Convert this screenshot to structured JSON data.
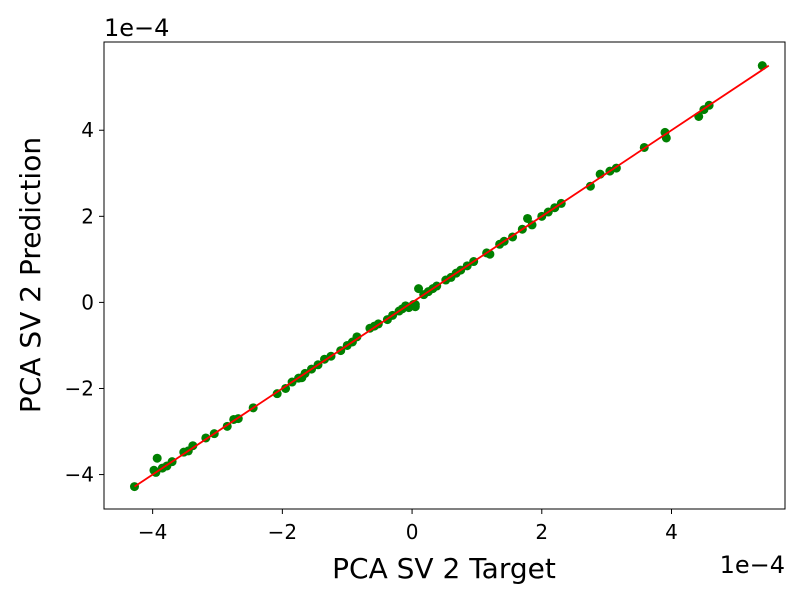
{
  "chart_data": {
    "type": "scatter",
    "title": "",
    "xlabel": "PCA SV 2 Target",
    "ylabel": "PCA SV 2 Prediction",
    "x_offset_text": "1e−4",
    "y_offset_text": "1e−4",
    "xlim": [
      -4.75,
      5.75
    ],
    "ylim": [
      -4.8,
      6.05
    ],
    "xticks": [
      -4,
      -2,
      0,
      2,
      4
    ],
    "yticks": [
      -4,
      -2,
      0,
      2,
      4
    ],
    "xtick_labels": [
      "−4",
      "−2",
      "0",
      "2",
      "4"
    ],
    "ytick_labels": [
      "−4",
      "−2",
      "0",
      "2",
      "4"
    ],
    "grid": false,
    "scale_note": "values in units of 1e-4",
    "points": {
      "color": "#008000",
      "x": [
        -4.28,
        -3.98,
        -3.93,
        -3.85,
        -3.78,
        -3.95,
        -3.7,
        -3.52,
        -3.45,
        -3.38,
        -3.18,
        -3.05,
        -2.85,
        -2.75,
        -2.68,
        -2.45,
        -2.08,
        -1.95,
        -1.85,
        -1.75,
        -1.65,
        -1.55,
        -1.45,
        -1.35,
        -1.25,
        -1.1,
        -1.0,
        -0.92,
        -0.85,
        -0.65,
        -0.58,
        -0.52,
        -0.38,
        -0.3,
        -0.2,
        -0.15,
        -0.1,
        0.05,
        0.1,
        0.18,
        0.25,
        0.32,
        0.38,
        0.52,
        0.6,
        0.68,
        0.75,
        0.85,
        0.95,
        1.15,
        1.2,
        1.35,
        1.42,
        1.55,
        1.7,
        1.78,
        1.85,
        2.0,
        2.1,
        2.2,
        2.3,
        2.75,
        2.9,
        3.05,
        3.15,
        3.58,
        3.9,
        3.92,
        4.42,
        4.5,
        4.58,
        5.4,
        -0.05,
        0.02,
        0.05,
        -1.7
      ],
      "y": [
        -4.28,
        -3.9,
        -3.62,
        -3.85,
        -3.8,
        -3.95,
        -3.7,
        -3.48,
        -3.45,
        -3.33,
        -3.15,
        -3.05,
        -2.88,
        -2.72,
        -2.7,
        -2.45,
        -2.12,
        -2.0,
        -1.85,
        -1.76,
        -1.65,
        -1.55,
        -1.45,
        -1.32,
        -1.25,
        -1.12,
        -1.0,
        -0.92,
        -0.8,
        -0.6,
        -0.55,
        -0.5,
        -0.4,
        -0.3,
        -0.2,
        -0.15,
        -0.08,
        -0.05,
        0.32,
        0.18,
        0.25,
        0.32,
        0.38,
        0.52,
        0.58,
        0.68,
        0.75,
        0.85,
        0.95,
        1.15,
        1.12,
        1.35,
        1.42,
        1.52,
        1.7,
        1.95,
        1.8,
        2.0,
        2.1,
        2.2,
        2.3,
        2.7,
        2.98,
        3.05,
        3.12,
        3.6,
        3.95,
        3.82,
        4.32,
        4.48,
        4.58,
        5.5,
        -0.12,
        -0.05,
        -0.1,
        -1.75
      ]
    },
    "fit_line": {
      "color": "#ff0000",
      "x": [
        -4.28,
        5.5
      ],
      "y": [
        -4.28,
        5.5
      ]
    }
  }
}
